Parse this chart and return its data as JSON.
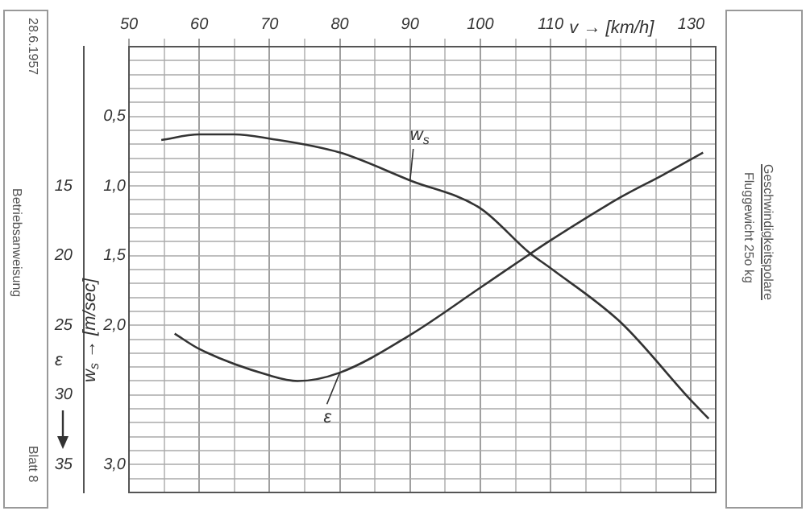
{
  "chart_data": {
    "type": "line",
    "title": "Geschwindigkeitspolare",
    "subtitle": "Fluggewicht 25o kg",
    "xlabel": "v → [km/h]",
    "ylabel": "w$_{s}$ → [m/sec]",
    "y2label": "ε",
    "annotations": [
      "28.6.1957",
      "Betriebsanweisung",
      "Blatt 8"
    ],
    "series": [
      {
        "name": "w$_{s}$",
        "color": "#333333",
        "x": [
          54.6,
          60,
          65,
          70,
          80,
          90,
          100,
          107,
          110,
          120,
          130,
          132.5
        ],
        "values": [
          0.67,
          0.63,
          0.63,
          0.66,
          0.76,
          0.96,
          1.16,
          1.48,
          1.59,
          1.98,
          2.54,
          2.67
        ]
      },
      {
        "name": "ε",
        "color": "#333333",
        "axis": "y2",
        "x": [
          56.5,
          60,
          70,
          74,
          80,
          90,
          100,
          107,
          110,
          120,
          126,
          131.7
        ],
        "values": [
          25.6,
          26.7,
          28.6,
          29.0,
          28.4,
          25.7,
          22.3,
          19.9,
          18.9,
          15.8,
          14.2,
          12.6
        ]
      }
    ],
    "xlim": [
      50,
      133.5
    ],
    "xticks": [
      50,
      {
        "value": 55,
        "label": null
      },
      60,
      {
        "value": 65,
        "label": null
      },
      70,
      {
        "value": 75,
        "label": null
      },
      80,
      {
        "value": 85,
        "label": null
      },
      90,
      {
        "value": 95,
        "label": null
      },
      100,
      {
        "value": 105,
        "label": null
      },
      110,
      {
        "value": 115,
        "label": null
      },
      {
        "value": 120,
        "label": null
      },
      {
        "value": 125,
        "label": null
      },
      130
    ],
    "ylim": [
      3.2,
      0
    ],
    "yticks": [
      {
        "value": 0.1,
        "label": null
      },
      {
        "value": 0.2,
        "label": null
      },
      {
        "value": 0.3,
        "label": null
      },
      {
        "value": 0.4,
        "label": null
      },
      {
        "value": 0.5,
        "label": "0,5"
      },
      {
        "value": 0.6,
        "label": null
      },
      {
        "value": 0.7,
        "label": null
      },
      {
        "value": 0.8,
        "label": null
      },
      {
        "value": 0.9,
        "label": null
      },
      {
        "value": 1.0,
        "label": "1,0"
      },
      {
        "value": 1.1,
        "label": null
      },
      {
        "value": 1.2,
        "label": null
      },
      {
        "value": 1.3,
        "label": null
      },
      {
        "value": 1.4,
        "label": null
      },
      {
        "value": 1.5,
        "label": "1,5"
      },
      {
        "value": 1.6,
        "label": null
      },
      {
        "value": 1.7,
        "label": null
      },
      {
        "value": 1.8,
        "label": null
      },
      {
        "value": 1.9,
        "label": null
      },
      {
        "value": 2.0,
        "label": "2,0"
      },
      {
        "value": 2.1,
        "label": null
      },
      {
        "value": 2.2,
        "label": null
      },
      {
        "value": 2.3,
        "label": null
      },
      {
        "value": 2.4,
        "label": null
      },
      {
        "value": 2.5,
        "label": null
      },
      {
        "value": 2.6,
        "label": null
      },
      {
        "value": 2.7,
        "label": null
      },
      {
        "value": 2.8,
        "label": null
      },
      {
        "value": 2.9,
        "label": null
      },
      {
        "value": 3.0,
        "label": "3,0"
      },
      {
        "value": 3.1,
        "label": null
      }
    ],
    "y2lim": [
      37,
      5
    ],
    "y2ticks": [
      15,
      20,
      25,
      30,
      35
    ],
    "grid": true,
    "marker": "none",
    "line_style": "solid"
  }
}
